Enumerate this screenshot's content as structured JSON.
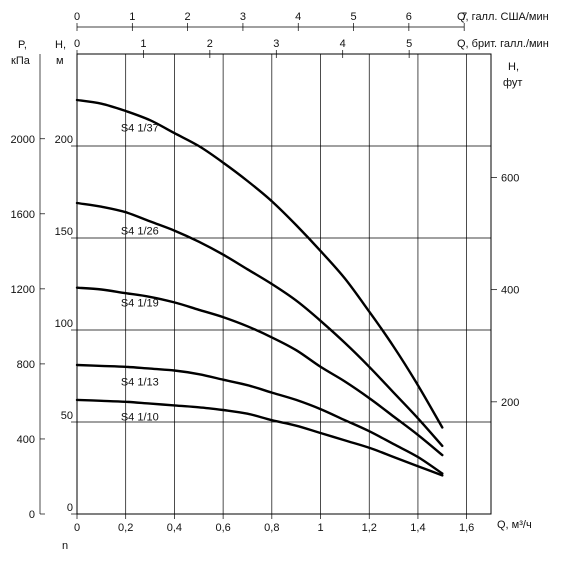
{
  "chart_data": {
    "type": "line",
    "x_axis": {
      "label": "Q, м³/ч",
      "min": 0,
      "max": 1.7,
      "ticks": [
        0,
        0.2,
        0.4,
        0.6,
        0.8,
        1,
        1.2,
        1.4,
        1.6
      ],
      "tick_labels": [
        "0",
        "0,2",
        "0,4",
        "0,6",
        "0,8",
        "1",
        "1,2",
        "1,4",
        "1,6"
      ],
      "grid": true
    },
    "top_axis_us": {
      "label": "Q, галл. США/мин",
      "ticks": [
        0,
        1,
        2,
        3,
        4,
        5,
        6,
        7
      ],
      "m3h_per_unit": 0.22712
    },
    "top_axis_uk": {
      "label": "Q, брит. галл./мин",
      "ticks": [
        0,
        1,
        2,
        3,
        4,
        5
      ],
      "m3h_per_unit": 0.27277
    },
    "y_axis_head_m": {
      "label_line1": "H,",
      "label_line2": "м",
      "min": 0,
      "max": 250,
      "ticks": [
        0,
        50,
        100,
        150,
        200
      ],
      "grid": true
    },
    "y_axis_pressure_kpa": {
      "label_line1": "P,",
      "label_line2": "кПа",
      "ticks": [
        0,
        400,
        800,
        1200,
        1600,
        2000
      ],
      "m_per_kpa": 0.10197
    },
    "y_axis_head_ft": {
      "label_line1": "H,",
      "label_line2": "фут",
      "ticks": [
        200,
        400,
        600
      ],
      "m_per_ft": 0.3048
    },
    "bottom_left_label": "n",
    "series": [
      {
        "name": "S4 1/37",
        "label_at": [
          0.18,
          210
        ],
        "x": [
          0,
          0.1,
          0.2,
          0.3,
          0.4,
          0.5,
          0.6,
          0.7,
          0.8,
          0.9,
          1.0,
          1.1,
          1.2,
          1.3,
          1.4,
          1.5
        ],
        "y": [
          225,
          223,
          219,
          214,
          207,
          200,
          191,
          181,
          170,
          157,
          143,
          128,
          110,
          91,
          70,
          47
        ]
      },
      {
        "name": "S4 1/26",
        "label_at": [
          0.18,
          154
        ],
        "x": [
          0,
          0.1,
          0.2,
          0.3,
          0.4,
          0.5,
          0.6,
          0.7,
          0.8,
          0.9,
          1.0,
          1.1,
          1.2,
          1.3,
          1.4,
          1.5
        ],
        "y": [
          169,
          167,
          164,
          159,
          154,
          148,
          141,
          133,
          125,
          116,
          105,
          93,
          80,
          66,
          52,
          37
        ]
      },
      {
        "name": "S4 1/19",
        "label_at": [
          0.18,
          115
        ],
        "x": [
          0,
          0.1,
          0.2,
          0.3,
          0.4,
          0.5,
          0.6,
          0.7,
          0.8,
          0.9,
          1.0,
          1.1,
          1.2,
          1.3,
          1.4,
          1.5
        ],
        "y": [
          123,
          122,
          120,
          118,
          115,
          111,
          107,
          102,
          96,
          89,
          80,
          72,
          63,
          53,
          43,
          32
        ]
      },
      {
        "name": "S4 1/13",
        "label_at": [
          0.18,
          72
        ],
        "x": [
          0,
          0.1,
          0.2,
          0.3,
          0.4,
          0.5,
          0.6,
          0.7,
          0.8,
          0.9,
          1.0,
          1.1,
          1.2,
          1.3,
          1.4,
          1.5
        ],
        "y": [
          81,
          80.5,
          80,
          79,
          78,
          76,
          73,
          70,
          66,
          62,
          57,
          51,
          45,
          38,
          31,
          22
        ]
      },
      {
        "name": "S4 1/10",
        "label_at": [
          0.18,
          53
        ],
        "x": [
          0,
          0.1,
          0.2,
          0.3,
          0.4,
          0.5,
          0.6,
          0.7,
          0.8,
          0.9,
          1.0,
          1.1,
          1.2,
          1.3,
          1.4,
          1.5
        ],
        "y": [
          62,
          61.5,
          61,
          60,
          59,
          58,
          56.5,
          54.5,
          51,
          48,
          44,
          40,
          36,
          31,
          26,
          21
        ]
      }
    ]
  }
}
